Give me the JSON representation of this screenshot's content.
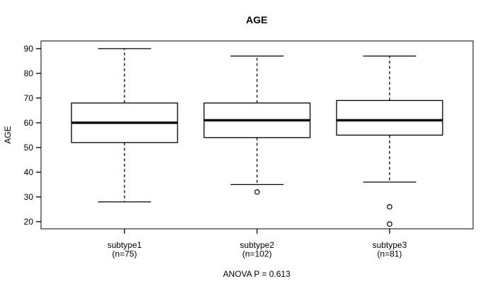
{
  "chart_data": {
    "type": "boxplot",
    "title": "AGE",
    "ylabel": "AGE",
    "xlabel": "",
    "footer": "ANOVA P = 0.613",
    "grid": false,
    "legend": null,
    "yticks": [
      20,
      30,
      40,
      50,
      60,
      70,
      80,
      90
    ],
    "ylim": [
      17.1,
      93.1
    ],
    "xlim": [
      0.37,
      3.63
    ],
    "box_width_units": 0.8,
    "groups": [
      {
        "label": "subtype1",
        "sublabel": "(n=75)",
        "position": 1,
        "whisker_low": 28,
        "q1": 52,
        "median": 60,
        "q3": 68,
        "whisker_high": 90,
        "outliers": []
      },
      {
        "label": "subtype2",
        "sublabel": "(n=102)",
        "position": 2,
        "whisker_low": 35,
        "q1": 54,
        "median": 61,
        "q3": 68,
        "whisker_high": 87,
        "outliers": [
          32
        ]
      },
      {
        "label": "subtype3",
        "sublabel": "(n=81)",
        "position": 3,
        "whisker_low": 36,
        "q1": 55,
        "median": 61,
        "q3": 69,
        "whisker_high": 87,
        "outliers": [
          26,
          19
        ]
      }
    ],
    "colors": {
      "line": "#000000",
      "plot_border": "#4a4a4a",
      "background": "#ffffff"
    }
  }
}
